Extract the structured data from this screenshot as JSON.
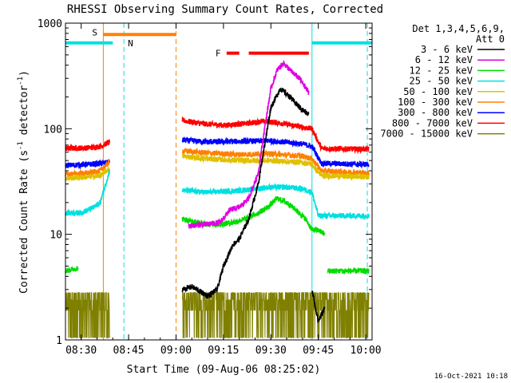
{
  "chart_data": {
    "type": "line",
    "title": "RHESSI Observing Summary Count Rates, Corrected",
    "xlabel": "Start Time (09-Aug-06 08:25:02)",
    "ylabel": "Corrected Count Rate (s⁻¹ detector⁻¹)",
    "ylabel_main": "Corrected Count Rate (s",
    "ylabel_mid": " detector",
    "ylabel_sup": "-1",
    "ylabel_close": ")",
    "yscale": "log",
    "ylim": [
      1,
      1000
    ],
    "xlim": [
      "08:25:02",
      "10:02:00"
    ],
    "x_ticks": [
      "08:30",
      "08:45",
      "09:00",
      "09:15",
      "09:30",
      "09:45",
      "10:00"
    ],
    "y_ticks": [
      "1",
      "10",
      "100",
      "1000"
    ],
    "legend": {
      "position": "right",
      "header": [
        "Det 1,3,4,5,6,9,",
        "Att 0"
      ],
      "entries": [
        {
          "label": "3 - 6 keV",
          "color": "#000000"
        },
        {
          "label": "6 - 12 keV",
          "color": "#e000e0"
        },
        {
          "label": "12 - 25 keV",
          "color": "#00dd00"
        },
        {
          "label": "25 - 50 keV",
          "color": "#00e0e0"
        },
        {
          "label": "50 - 100 keV",
          "color": "#e0c000"
        },
        {
          "label": "100 - 300 keV",
          "color": "#ff8000"
        },
        {
          "label": "300 - 800 keV",
          "color": "#0000ff"
        },
        {
          "label": "800 - 7000 keV",
          "color": "#ff0000"
        },
        {
          "label": "7000 - 15000 keV",
          "color": "#808000"
        }
      ]
    },
    "markers": {
      "S": {
        "label": "S",
        "color": "#ff8000"
      },
      "N": {
        "label": "N",
        "color": "#00e0e0"
      },
      "F": {
        "label": "F",
        "color": "#ff0000"
      }
    },
    "bars": [
      {
        "name": "S",
        "color": "#ff8000",
        "start": "08:37:00",
        "end": "09:00:00",
        "level": 780
      },
      {
        "name": "N",
        "color": "#00e0e0",
        "start": "08:25:02",
        "end": "08:40:00",
        "level": 650
      },
      {
        "name": "N",
        "color": "#00e0e0",
        "start": "09:43:00",
        "end": "10:02:00",
        "level": 650
      },
      {
        "name": "F",
        "color": "#ff0000",
        "start": "09:16:00",
        "end": "09:20:00",
        "level": 520
      },
      {
        "name": "F",
        "color": "#ff0000",
        "start": "09:23:00",
        "end": "09:42:00",
        "level": 520
      }
    ],
    "vlines": [
      {
        "time": "08:37:00",
        "color": "#ff8000",
        "style": "solid"
      },
      {
        "time": "08:43:30",
        "color": "#00e0e0",
        "style": "dashed"
      },
      {
        "time": "09:00:00",
        "color": "#ff8000",
        "style": "dashed"
      },
      {
        "time": "09:43:00",
        "color": "#00e0e0",
        "style": "solid"
      },
      {
        "time": "10:00:30",
        "color": "#00e0e0",
        "style": "dashed"
      }
    ],
    "series": [
      {
        "name": "3 - 6 keV",
        "color": "#000000",
        "segments": [
          {
            "start": "09:02:00",
            "end": "09:42:00",
            "points": [
              [
                "09:02:00",
                3.0
              ],
              [
                "09:05:00",
                3.2
              ],
              [
                "09:10:00",
                2.6
              ],
              [
                "09:13:00",
                3.0
              ],
              [
                "09:15:00",
                5.0
              ],
              [
                "09:18:00",
                8.0
              ],
              [
                "09:20:00",
                9.0
              ],
              [
                "09:23:00",
                14
              ],
              [
                "09:26:00",
                30
              ],
              [
                "09:28:00",
                70
              ],
              [
                "09:30:00",
                160
              ],
              [
                "09:33:00",
                240
              ],
              [
                "09:36:00",
                200
              ],
              [
                "09:39:00",
                160
              ],
              [
                "09:42:00",
                135
              ]
            ]
          },
          {
            "start": "09:43:00",
            "end": "09:47:00",
            "points": [
              [
                "09:43:00",
                3.0
              ],
              [
                "09:45:00",
                1.5
              ],
              [
                "09:47:00",
                2.0
              ]
            ]
          }
        ]
      },
      {
        "name": "6 - 12 keV",
        "color": "#e000e0",
        "segments": [
          {
            "start": "09:04:00",
            "end": "09:42:00",
            "points": [
              [
                "09:04:00",
                12
              ],
              [
                "09:10:00",
                12.5
              ],
              [
                "09:14:00",
                13
              ],
              [
                "09:17:00",
                17
              ],
              [
                "09:20:00",
                18
              ],
              [
                "09:23:00",
                22
              ],
              [
                "09:26:00",
                38
              ],
              [
                "09:28:00",
                100
              ],
              [
                "09:30:00",
                240
              ],
              [
                "09:32:00",
                360
              ],
              [
                "09:34:00",
                420
              ],
              [
                "09:36:00",
                360
              ],
              [
                "09:39:00",
                300
              ],
              [
                "09:42:00",
                220
              ]
            ]
          }
        ]
      },
      {
        "name": "12 - 25 keV",
        "color": "#00dd00",
        "segments": [
          {
            "start": "08:25:02",
            "end": "08:29:00",
            "points": [
              [
                "08:25:02",
                4.5
              ],
              [
                "08:29:00",
                4.8
              ]
            ]
          },
          {
            "start": "09:02:00",
            "end": "09:47:00",
            "points": [
              [
                "09:02:00",
                14
              ],
              [
                "09:06:00",
                13
              ],
              [
                "09:10:00",
                12.5
              ],
              [
                "09:14:00",
                12.5
              ],
              [
                "09:18:00",
                13
              ],
              [
                "09:22:00",
                14
              ],
              [
                "09:26:00",
                16
              ],
              [
                "09:29:00",
                18
              ],
              [
                "09:32:00",
                22
              ],
              [
                "09:35:00",
                20
              ],
              [
                "09:38:00",
                17
              ],
              [
                "09:41:00",
                14
              ],
              [
                "09:43:00",
                11
              ],
              [
                "09:45:00",
                11
              ],
              [
                "09:47:00",
                10
              ]
            ]
          },
          {
            "start": "09:48:00",
            "end": "10:01:00",
            "points": [
              [
                "09:48:00",
                4.5
              ],
              [
                "10:01:00",
                4.5
              ]
            ]
          }
        ]
      },
      {
        "name": "25 - 50 keV",
        "color": "#00e0e0",
        "segments": [
          {
            "start": "08:25:02",
            "end": "08:39:00",
            "points": [
              [
                "08:25:02",
                16
              ],
              [
                "08:30:00",
                16
              ],
              [
                "08:34:00",
                18
              ],
              [
                "08:36:00",
                20
              ],
              [
                "08:39:00",
                40
              ]
            ]
          },
          {
            "start": "09:02:00",
            "end": "10:01:00",
            "points": [
              [
                "09:02:00",
                26
              ],
              [
                "09:10:00",
                25
              ],
              [
                "09:20:00",
                26
              ],
              [
                "09:25:00",
                27
              ],
              [
                "09:30:00",
                28
              ],
              [
                "09:35:00",
                28
              ],
              [
                "09:40:00",
                27
              ],
              [
                "09:43:00",
                25
              ],
              [
                "09:45:00",
                15
              ],
              [
                "10:01:00",
                15
              ]
            ]
          }
        ]
      },
      {
        "name": "50 - 100 keV",
        "color": "#e0c000",
        "segments": [
          {
            "start": "08:25:02",
            "end": "08:39:00",
            "points": [
              [
                "08:25:02",
                34
              ],
              [
                "08:32:00",
                35
              ],
              [
                "08:36:00",
                36
              ],
              [
                "08:39:00",
                42
              ]
            ]
          },
          {
            "start": "09:02:00",
            "end": "10:01:00",
            "points": [
              [
                "09:02:00",
                55
              ],
              [
                "09:10:00",
                52
              ],
              [
                "09:20:00",
                50
              ],
              [
                "09:30:00",
                50
              ],
              [
                "09:40:00",
                48
              ],
              [
                "09:43:00",
                46
              ],
              [
                "09:46:00",
                36
              ],
              [
                "10:01:00",
                35
              ]
            ]
          }
        ]
      },
      {
        "name": "100 - 300 keV",
        "color": "#ff8000",
        "segments": [
          {
            "start": "08:25:02",
            "end": "08:39:00",
            "points": [
              [
                "08:25:02",
                37
              ],
              [
                "08:32:00",
                38
              ],
              [
                "08:36:00",
                40
              ],
              [
                "08:39:00",
                48
              ]
            ]
          },
          {
            "start": "09:02:00",
            "end": "10:01:00",
            "points": [
              [
                "09:02:00",
                62
              ],
              [
                "09:10:00",
                59
              ],
              [
                "09:20:00",
                57
              ],
              [
                "09:30:00",
                58
              ],
              [
                "09:40:00",
                55
              ],
              [
                "09:43:00",
                52
              ],
              [
                "09:46:00",
                40
              ],
              [
                "10:01:00",
                38
              ]
            ]
          }
        ]
      },
      {
        "name": "300 - 800 keV",
        "color": "#0000ff",
        "segments": [
          {
            "start": "08:25:02",
            "end": "08:39:00",
            "points": [
              [
                "08:25:02",
                45
              ],
              [
                "08:32:00",
                46
              ],
              [
                "08:36:00",
                47
              ],
              [
                "08:39:00",
                48
              ]
            ]
          },
          {
            "start": "09:02:00",
            "end": "10:01:00",
            "points": [
              [
                "09:02:00",
                78
              ],
              [
                "09:10:00",
                75
              ],
              [
                "09:20:00",
                76
              ],
              [
                "09:30:00",
                77
              ],
              [
                "09:40:00",
                72
              ],
              [
                "09:43:00",
                68
              ],
              [
                "09:46:00",
                47
              ],
              [
                "10:01:00",
                46
              ]
            ]
          }
        ]
      },
      {
        "name": "800 - 7000 keV",
        "color": "#ff0000",
        "segments": [
          {
            "start": "08:25:02",
            "end": "08:39:00",
            "points": [
              [
                "08:25:02",
                65
              ],
              [
                "08:32:00",
                66
              ],
              [
                "08:36:00",
                68
              ],
              [
                "08:39:00",
                75
              ]
            ]
          },
          {
            "start": "09:02:00",
            "end": "10:01:00",
            "points": [
              [
                "09:02:00",
                120
              ],
              [
                "09:08:00",
                112
              ],
              [
                "09:15:00",
                108
              ],
              [
                "09:22:00",
                112
              ],
              [
                "09:28:00",
                118
              ],
              [
                "09:33:00",
                113
              ],
              [
                "09:38:00",
                106
              ],
              [
                "09:43:00",
                100
              ],
              [
                "09:46:00",
                65
              ],
              [
                "10:01:00",
                64
              ]
            ]
          }
        ]
      },
      {
        "name": "7000 - 15000 keV",
        "color": "#808000",
        "segments": [
          {
            "start": "08:25:02",
            "end": "08:39:00",
            "points": [
              [
                "08:25:02",
                2.0
              ],
              [
                "08:39:00",
                2.0
              ]
            ]
          },
          {
            "start": "09:02:00",
            "end": "10:01:00",
            "points": [
              [
                "09:02:00",
                2.0
              ],
              [
                "10:01:00",
                2.0
              ]
            ]
          }
        ]
      }
    ]
  },
  "footer": {
    "date": "16-Oct-2021 10:18"
  }
}
